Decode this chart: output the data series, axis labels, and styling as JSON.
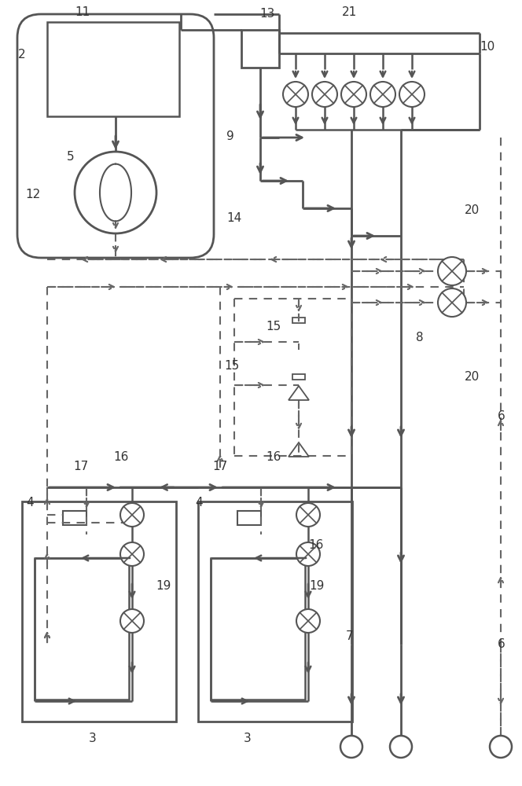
{
  "bg_color": "#ffffff",
  "lc": "#555555",
  "dc": "#666666",
  "fig_width": 6.64,
  "fig_height": 10.0,
  "labels": [
    [
      105,
      15,
      "11"
    ],
    [
      28,
      70,
      "2"
    ],
    [
      90,
      200,
      "5"
    ],
    [
      42,
      248,
      "12"
    ],
    [
      340,
      18,
      "13"
    ],
    [
      445,
      15,
      "21"
    ],
    [
      620,
      60,
      "10"
    ],
    [
      293,
      173,
      "9"
    ],
    [
      298,
      278,
      "14"
    ],
    [
      600,
      268,
      "20"
    ],
    [
      600,
      480,
      "20"
    ],
    [
      638,
      530,
      "6"
    ],
    [
      348,
      415,
      "15"
    ],
    [
      295,
      465,
      "15"
    ],
    [
      534,
      430,
      "8"
    ],
    [
      103,
      594,
      "17"
    ],
    [
      154,
      581,
      "16"
    ],
    [
      280,
      594,
      "17"
    ],
    [
      348,
      581,
      "16"
    ],
    [
      402,
      693,
      "16"
    ],
    [
      403,
      745,
      "19"
    ],
    [
      208,
      745,
      "19"
    ],
    [
      38,
      640,
      "4"
    ],
    [
      253,
      640,
      "4"
    ],
    [
      118,
      940,
      "3"
    ],
    [
      315,
      940,
      "3"
    ],
    [
      445,
      810,
      "7"
    ],
    [
      638,
      820,
      "6"
    ]
  ]
}
